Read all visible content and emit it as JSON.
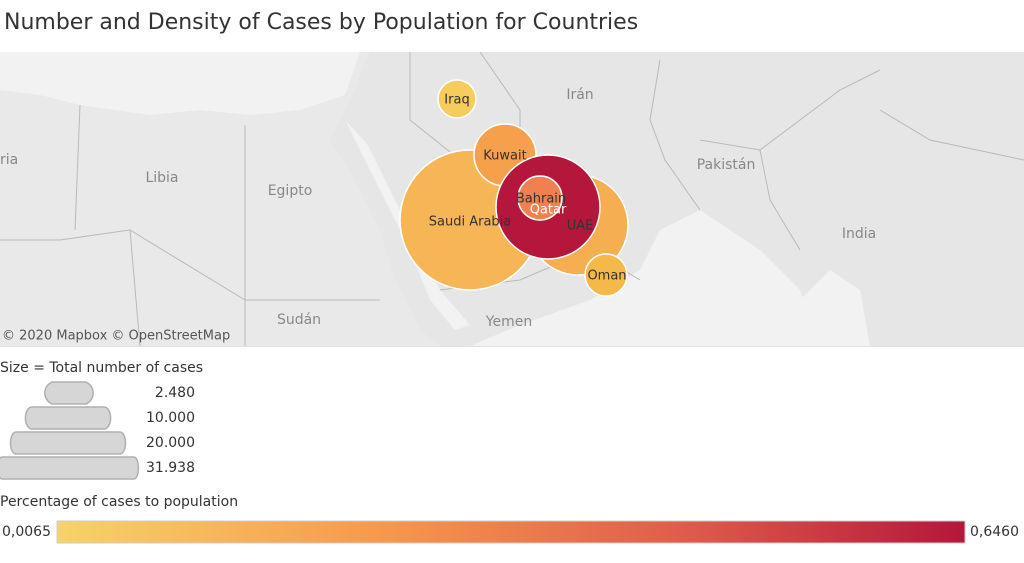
{
  "title": "Number and Density of Cases by Population for Countries",
  "map": {
    "place_labels": [
      "Irán",
      "Libia",
      "Egipto",
      "Pakistán",
      "India",
      "Sudán",
      "Yemen",
      "ria"
    ],
    "attribution": "© 2020 Mapbox  © OpenStreetMap"
  },
  "bubbles": [
    "Saudi Arabia",
    "UAE",
    "Kuwait",
    "Iraq",
    "Oman",
    "Bahrain",
    "Qatar"
  ],
  "size_legend": {
    "title": "Size = Total number of cases",
    "items": [
      "2.480",
      "10.000",
      "20.000",
      "31.938"
    ]
  },
  "color_legend": {
    "title": "Percentage of cases to population",
    "min": "0,0065",
    "max": "0,6460"
  }
}
